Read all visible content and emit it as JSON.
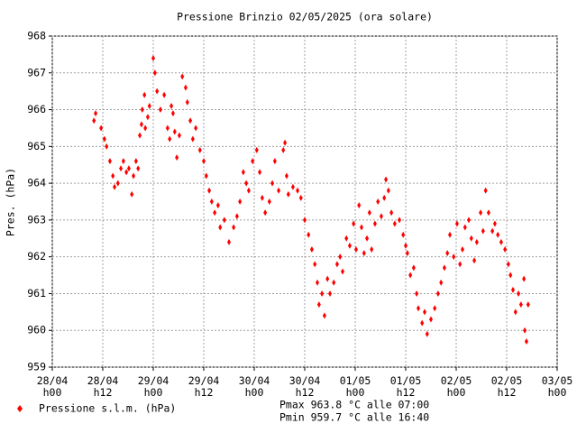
{
  "chart_data": {
    "type": "scatter",
    "title": "Pressione Brinzio 02/05/2025 (ora solare)",
    "y_label": "Pres. (hPa)",
    "annotations": [
      "Pmax 963.8 °C alle 07:00",
      "Pmin 959.7 °C alle 16:40"
    ],
    "xlim": [
      0,
      120
    ],
    "ylim": [
      959,
      968
    ],
    "xticks": [
      {
        "value": 0,
        "label": "28/04 h00"
      },
      {
        "value": 12,
        "label": "28/04 h12"
      },
      {
        "value": 24,
        "label": "29/04 h00"
      },
      {
        "value": 36,
        "label": "29/04 h12"
      },
      {
        "value": 48,
        "label": "30/04 h00"
      },
      {
        "value": 60,
        "label": "30/04 h12"
      },
      {
        "value": 72,
        "label": "01/05 h00"
      },
      {
        "value": 84,
        "label": "01/05 h12"
      },
      {
        "value": 96,
        "label": "02/05 h00"
      },
      {
        "value": 108,
        "label": "02/05 h12"
      },
      {
        "value": 120,
        "label": "03/05 h00"
      }
    ],
    "yticks": [
      959,
      960,
      961,
      962,
      963,
      964,
      965,
      966,
      967,
      968
    ],
    "grid": true,
    "series": [
      {
        "name": "Pressione s.l.m. (hPa)",
        "color": "#ff0000",
        "x": [
          9.9,
          10.3,
          11.6,
          12.4,
          12.9,
          13.7,
          14.4,
          14.8,
          15.6,
          16.3,
          16.9,
          17.6,
          18.2,
          18.9,
          19.3,
          19.9,
          20.4,
          20.8,
          21.2,
          21.4,
          21.9,
          22.1,
          22.7,
          23.1,
          24.0,
          24.4,
          24.9,
          25.7,
          26.6,
          27.4,
          27.9,
          28.3,
          28.7,
          29.1,
          29.6,
          30.2,
          30.9,
          31.7,
          32.1,
          32.8,
          33.4,
          34.1,
          35.1,
          36.0,
          36.6,
          37.3,
          37.9,
          38.6,
          39.4,
          39.9,
          40.9,
          42.0,
          43.1,
          43.9,
          44.6,
          45.4,
          46.1,
          46.7,
          47.6,
          48.6,
          49.3,
          49.9,
          50.6,
          51.6,
          52.3,
          52.9,
          53.8,
          54.9,
          55.3,
          55.7,
          56.1,
          57.2,
          58.3,
          59.1,
          60.0,
          60.9,
          61.7,
          62.4,
          63.0,
          63.4,
          64.1,
          64.7,
          65.4,
          66.0,
          66.9,
          67.7,
          68.4,
          69.0,
          69.9,
          70.7,
          71.6,
          72.2,
          72.9,
          73.5,
          74.1,
          74.8,
          75.4,
          75.9,
          76.7,
          77.4,
          78.2,
          78.9,
          79.3,
          79.9,
          80.6,
          81.4,
          82.5,
          83.4,
          84.0,
          84.4,
          85.1,
          85.9,
          86.6,
          87.0,
          87.9,
          88.5,
          89.1,
          90.0,
          90.9,
          91.7,
          92.4,
          93.2,
          93.9,
          94.5,
          95.4,
          96.2,
          96.9,
          97.5,
          98.1,
          99.0,
          99.6,
          100.3,
          100.9,
          101.8,
          102.4,
          103.0,
          103.7,
          104.6,
          105.2,
          105.9,
          106.7,
          107.6,
          108.4,
          108.9,
          109.5,
          110.1,
          110.8,
          111.4,
          112.1,
          112.3,
          112.7,
          113.1
        ],
        "values": [
          965.7,
          965.9,
          965.5,
          965.2,
          965.0,
          964.6,
          964.2,
          963.9,
          964.0,
          964.4,
          964.6,
          964.3,
          964.4,
          963.7,
          964.2,
          964.6,
          964.4,
          965.3,
          965.6,
          966.0,
          966.4,
          965.5,
          965.8,
          966.1,
          967.4,
          967.0,
          966.5,
          966.0,
          966.4,
          965.5,
          965.2,
          966.1,
          965.9,
          965.4,
          964.7,
          965.3,
          966.9,
          966.6,
          966.2,
          965.7,
          965.2,
          965.5,
          964.9,
          964.6,
          964.2,
          963.8,
          963.5,
          963.2,
          963.4,
          962.8,
          963.0,
          962.4,
          962.8,
          963.1,
          963.5,
          964.3,
          964.0,
          963.8,
          964.6,
          964.9,
          964.3,
          963.6,
          963.2,
          963.5,
          964.0,
          964.6,
          963.8,
          964.9,
          965.1,
          964.2,
          963.7,
          963.9,
          963.8,
          963.6,
          963.0,
          962.6,
          962.2,
          961.8,
          961.3,
          960.7,
          961.0,
          960.4,
          961.4,
          961.0,
          961.3,
          961.8,
          962.0,
          961.6,
          962.5,
          962.3,
          962.9,
          962.2,
          963.4,
          962.8,
          962.1,
          962.5,
          963.2,
          962.2,
          962.9,
          963.5,
          963.1,
          963.6,
          964.1,
          963.8,
          963.2,
          962.9,
          963.0,
          962.6,
          962.3,
          962.1,
          961.5,
          961.7,
          961.0,
          960.6,
          960.2,
          960.5,
          959.9,
          960.3,
          960.6,
          961.0,
          961.3,
          961.7,
          962.1,
          962.6,
          962.0,
          962.9,
          961.8,
          962.2,
          962.8,
          963.0,
          962.5,
          961.9,
          962.4,
          963.2,
          962.7,
          963.8,
          963.2,
          962.7,
          962.9,
          962.6,
          962.4,
          962.2,
          961.8,
          961.5,
          961.1,
          960.5,
          961.0,
          960.7,
          961.4,
          960.0,
          959.7,
          960.7
        ]
      }
    ]
  }
}
